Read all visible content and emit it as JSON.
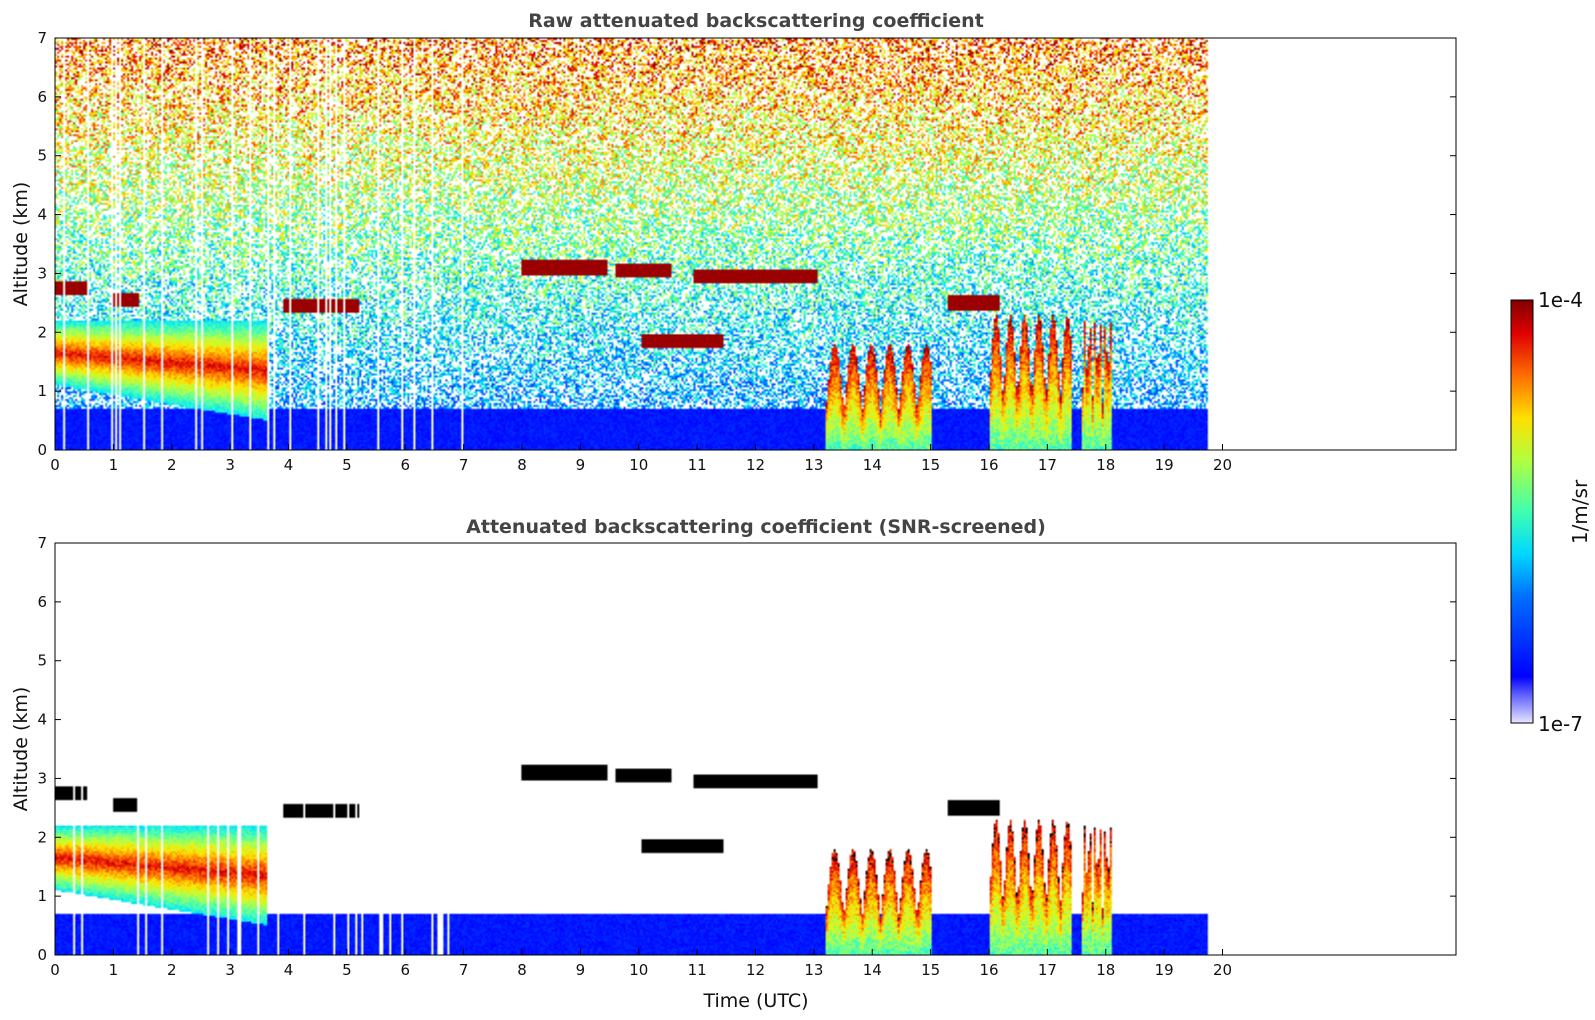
{
  "chart_data": [
    {
      "type": "heatmap",
      "title": "Raw attenuated backscattering coefficient",
      "xlabel": "",
      "ylabel": "Altitude (km)",
      "xlim": [
        0,
        24
      ],
      "ylim": [
        0,
        7
      ],
      "xticks": [
        "0",
        "1",
        "2",
        "3",
        "4",
        "5",
        "6",
        "7",
        "8",
        "9",
        "10",
        "11",
        "12",
        "13",
        "14",
        "15",
        "16",
        "17",
        "18",
        "19",
        "20"
      ],
      "yticks": [
        "0",
        "1",
        "2",
        "3",
        "4",
        "5",
        "6",
        "7"
      ],
      "data_end_time": 19.75,
      "features": [
        {
          "kind": "boundary_layer",
          "t_start": 0.0,
          "t_end": 19.75,
          "z_top": 0.7
        },
        {
          "kind": "aerosol_layer",
          "t_start": 0.0,
          "t_end": 3.65,
          "z_bottom_start": 1.1,
          "z_bottom_end": 0.5,
          "z_top": 2.2
        },
        {
          "kind": "cloud",
          "t_start": 0.0,
          "t_end": 0.55,
          "z": 2.75
        },
        {
          "kind": "cloud",
          "t_start": 1.0,
          "t_end": 1.45,
          "z": 2.55
        },
        {
          "kind": "cloud",
          "t_start": 3.9,
          "t_end": 5.2,
          "z": 2.45
        },
        {
          "kind": "cloud",
          "t_start": 8.0,
          "t_end": 9.45,
          "z": 3.1
        },
        {
          "kind": "cloud",
          "t_start": 9.6,
          "t_end": 10.55,
          "z": 3.05
        },
        {
          "kind": "cloud",
          "t_start": 10.95,
          "t_end": 13.05,
          "z": 2.95
        },
        {
          "kind": "cloud",
          "t_start": 10.05,
          "t_end": 11.45,
          "z": 1.85
        },
        {
          "kind": "cloud",
          "t_start": 15.3,
          "t_end": 16.2,
          "z": 2.5
        },
        {
          "kind": "convective",
          "t_start": 13.2,
          "t_end": 15.0,
          "z_top": 1.8
        },
        {
          "kind": "convective",
          "t_start": 16.0,
          "t_end": 17.4,
          "z_top": 2.3
        },
        {
          "kind": "convective",
          "t_start": 17.6,
          "t_end": 18.1,
          "z_top": 2.2
        }
      ]
    },
    {
      "type": "heatmap",
      "title": "Attenuated backscattering coefficient (SNR-screened)",
      "xlabel": "Time (UTC)",
      "ylabel": "Altitude (km)",
      "xlim": [
        0,
        24
      ],
      "ylim": [
        0,
        7
      ],
      "xticks": [
        "0",
        "1",
        "2",
        "3",
        "4",
        "5",
        "6",
        "7",
        "8",
        "9",
        "10",
        "11",
        "12",
        "13",
        "14",
        "15",
        "16",
        "17",
        "18",
        "19",
        "20"
      ],
      "yticks": [
        "0",
        "1",
        "2",
        "3",
        "4",
        "5",
        "6",
        "7"
      ],
      "data_end_time": 19.75,
      "screened": true
    }
  ],
  "colorbar": {
    "label": "1/m/sr",
    "max_label": "1e-4",
    "min_label": "1e-7",
    "scale": "log",
    "range": [
      1e-07,
      0.0001
    ],
    "colormap": "jet"
  }
}
